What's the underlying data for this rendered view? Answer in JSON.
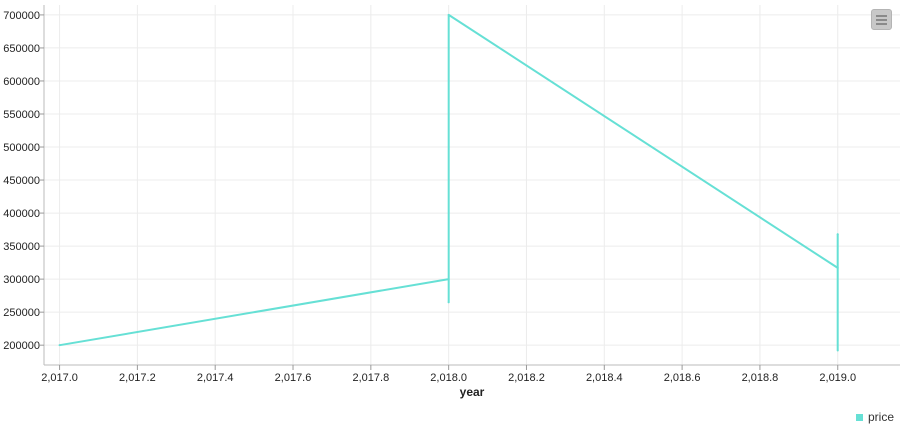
{
  "chart_data": {
    "type": "line",
    "xlabel": "year",
    "ylabel": "",
    "xlim": [
      2016.96,
      2019.16
    ],
    "ylim": [
      170000,
      715000
    ],
    "x_ticks": [
      2017.0,
      2017.2,
      2017.4,
      2017.6,
      2017.8,
      2018.0,
      2018.2,
      2018.4,
      2018.6,
      2018.8,
      2019.0
    ],
    "x_tick_labels": [
      "2,017.0",
      "2,017.2",
      "2,017.4",
      "2,017.6",
      "2,017.8",
      "2,018.0",
      "2,018.2",
      "2,018.4",
      "2,018.6",
      "2,018.8",
      "2,019.0"
    ],
    "y_ticks": [
      200000,
      250000,
      300000,
      350000,
      400000,
      450000,
      500000,
      550000,
      600000,
      650000,
      700000
    ],
    "y_tick_labels": [
      "200000",
      "250000",
      "300000",
      "350000",
      "400000",
      "450000",
      "500000",
      "550000",
      "600000",
      "650000",
      "700000"
    ],
    "grid": true,
    "legend_position": "bottom-right",
    "series": [
      {
        "name": "price",
        "color": "#66e0d5",
        "points": [
          [
            2017.0,
            200000
          ],
          [
            2018.0,
            300000
          ],
          [
            2018.0,
            265000
          ],
          [
            2018.0,
            700000
          ],
          [
            2019.0,
            317000
          ],
          [
            2019.0,
            368000
          ],
          [
            2019.0,
            192000
          ]
        ]
      }
    ]
  },
  "toolbar": {
    "menu_icon": "hamburger-menu-icon"
  }
}
